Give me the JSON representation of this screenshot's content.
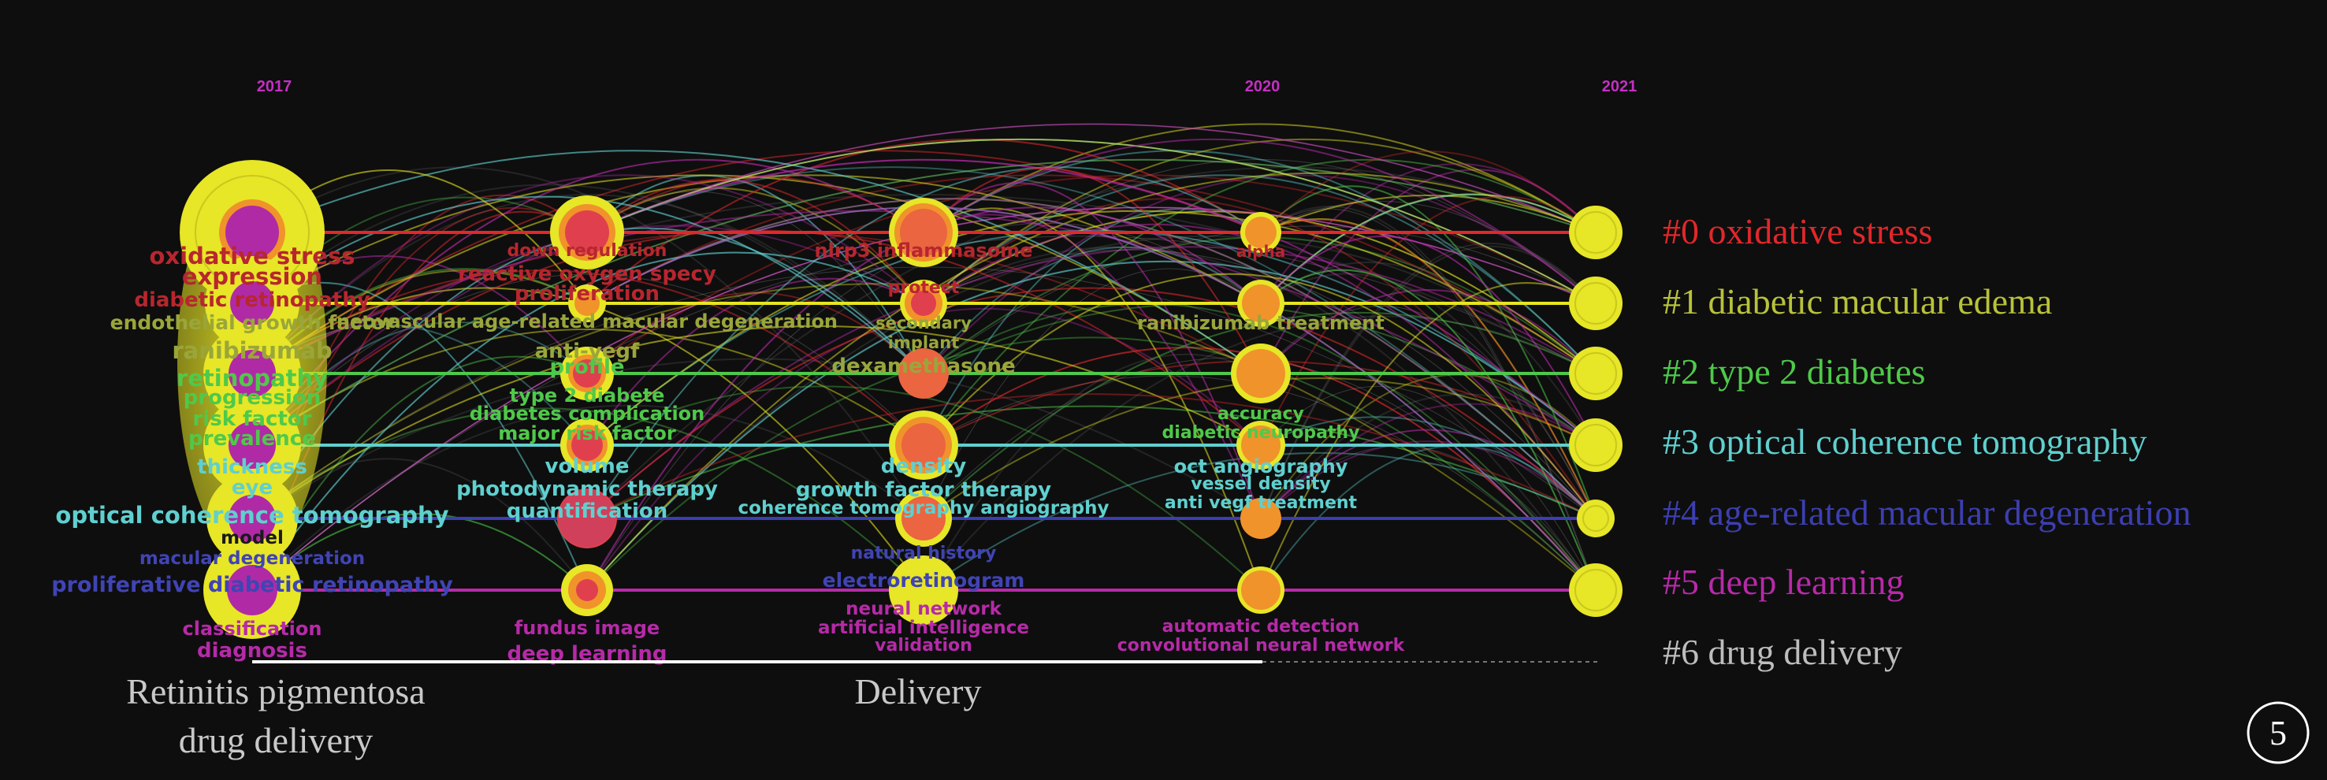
{
  "colors": {
    "background": "#0e0e0e",
    "red": "#e0282b",
    "yellow": "#e6e620",
    "green": "#4fc94a",
    "cyan": "#5fd0cf",
    "blue": "#3c3fb0",
    "magenta": "#b62aa8",
    "gray": "#bdbdbd",
    "node_outer": "#e7e627",
    "node_mid": "#f0932b",
    "node_inner": "#e0404e",
    "node_core": "#b02aa6"
  },
  "years": [
    "2017",
    "2020",
    "2021"
  ],
  "clusters": [
    {
      "label": "#0 oxidative stress",
      "color": "#e0282b"
    },
    {
      "label": "#1 diabetic macular edema",
      "color": "#b8c23a"
    },
    {
      "label": "#2 type 2 diabetes",
      "color": "#4fc94a"
    },
    {
      "label": "#3 optical coherence tomography",
      "color": "#5fd0cf"
    },
    {
      "label": "#4 age-related macular degeneration",
      "color": "#3c3fb0"
    },
    {
      "label": "#5 deep learning",
      "color": "#b62aa8"
    },
    {
      "label": "#6 drug delivery",
      "color": "#bdbdbd"
    }
  ],
  "keywords": [
    {
      "text": "oxidative stress",
      "color": "#b8262e",
      "size": 29
    },
    {
      "text": "expression",
      "color": "#b8262e",
      "size": 29
    },
    {
      "text": "diabetic retinopathy",
      "color": "#b8262e",
      "size": 26
    },
    {
      "text": "endothelial growth factor",
      "color": "#9aa63a",
      "size": 25
    },
    {
      "text": "ranibizumab",
      "color": "#9aa63a",
      "size": 29
    },
    {
      "text": "retinopathy",
      "color": "#4fc94a",
      "size": 29
    },
    {
      "text": "progression",
      "color": "#4fc94a",
      "size": 26
    },
    {
      "text": "risk factor",
      "color": "#4fc94a",
      "size": 26
    },
    {
      "text": "prevalence",
      "color": "#4fc94a",
      "size": 26
    },
    {
      "text": "thickness",
      "color": "#5fd0cf",
      "size": 26
    },
    {
      "text": "eye",
      "color": "#5fd0cf",
      "size": 26
    },
    {
      "text": "optical coherence tomography",
      "color": "#5fd0cf",
      "size": 29
    },
    {
      "text": "model",
      "color": "#1a1a1a",
      "size": 23
    },
    {
      "text": "macular degeneration",
      "color": "#4044b4",
      "size": 23
    },
    {
      "text": "proliferative diabetic retinopathy",
      "color": "#4044b4",
      "size": 27
    },
    {
      "text": "classification",
      "color": "#b62aa8",
      "size": 24
    },
    {
      "text": "diagnosis",
      "color": "#b62aa8",
      "size": 26
    },
    {
      "text": "down regulation",
      "color": "#b8262e",
      "size": 22
    },
    {
      "text": "reactive oxygen specy",
      "color": "#b8262e",
      "size": 26
    },
    {
      "text": "proliferation",
      "color": "#b8262e",
      "size": 26
    },
    {
      "text": "neovascular age-related macular degeneration",
      "color": "#9aa63a",
      "size": 24
    },
    {
      "text": "anti-vegf",
      "color": "#9aa63a",
      "size": 26
    },
    {
      "text": "profile",
      "color": "#4fc94a",
      "size": 26
    },
    {
      "text": "type 2 diabete",
      "color": "#4fc94a",
      "size": 24
    },
    {
      "text": "diabetes complication",
      "color": "#4fc94a",
      "size": 24
    },
    {
      "text": "major risk factor",
      "color": "#4fc94a",
      "size": 24
    },
    {
      "text": "volume",
      "color": "#5fd0cf",
      "size": 26
    },
    {
      "text": "photodynamic therapy",
      "color": "#5fd0cf",
      "size": 26
    },
    {
      "text": "quantification",
      "color": "#5fd0cf",
      "size": 26
    },
    {
      "text": "fundus image",
      "color": "#b62aa8",
      "size": 24
    },
    {
      "text": "deep learning",
      "color": "#b62aa8",
      "size": 26
    },
    {
      "text": "nlrp3 inflammasome",
      "color": "#b8262e",
      "size": 24
    },
    {
      "text": "protect",
      "color": "#b8262e",
      "size": 22
    },
    {
      "text": "secondary",
      "color": "#9aa63a",
      "size": 21
    },
    {
      "text": "implant",
      "color": "#9aa63a",
      "size": 21
    },
    {
      "text": "dexamethasone",
      "color": "#9aa63a",
      "size": 26
    },
    {
      "text": "density",
      "color": "#5fd0cf",
      "size": 26
    },
    {
      "text": "growth factor therapy",
      "color": "#5fd0cf",
      "size": 26
    },
    {
      "text": "coherence tomography angiography",
      "color": "#5fd0cf",
      "size": 23
    },
    {
      "text": "natural history",
      "color": "#4044b4",
      "size": 22
    },
    {
      "text": "electroretinogram",
      "color": "#4044b4",
      "size": 25
    },
    {
      "text": "neural network",
      "color": "#b62aa8",
      "size": 23
    },
    {
      "text": "artificial intelligence",
      "color": "#b62aa8",
      "size": 23
    },
    {
      "text": "validation",
      "color": "#b62aa8",
      "size": 22
    },
    {
      "text": "alpha",
      "color": "#b8262e",
      "size": 20
    },
    {
      "text": "ranibizumab treatment",
      "color": "#9aa63a",
      "size": 24
    },
    {
      "text": "accuracy",
      "color": "#4fc94a",
      "size": 22
    },
    {
      "text": "diabetic neuropathy",
      "color": "#4fc94a",
      "size": 22
    },
    {
      "text": "oct angiography",
      "color": "#5fd0cf",
      "size": 24
    },
    {
      "text": "vessel density",
      "color": "#5fd0cf",
      "size": 22
    },
    {
      "text": "anti vegf treatment",
      "color": "#5fd0cf",
      "size": 22
    },
    {
      "text": "automatic detection",
      "color": "#b62aa8",
      "size": 22
    },
    {
      "text": "convolutional neural network",
      "color": "#b62aa8",
      "size": 22
    }
  ],
  "bottom_labels": [
    "Retinitis pigmentosa",
    "drug delivery",
    "Delivery"
  ],
  "page_number": "5"
}
